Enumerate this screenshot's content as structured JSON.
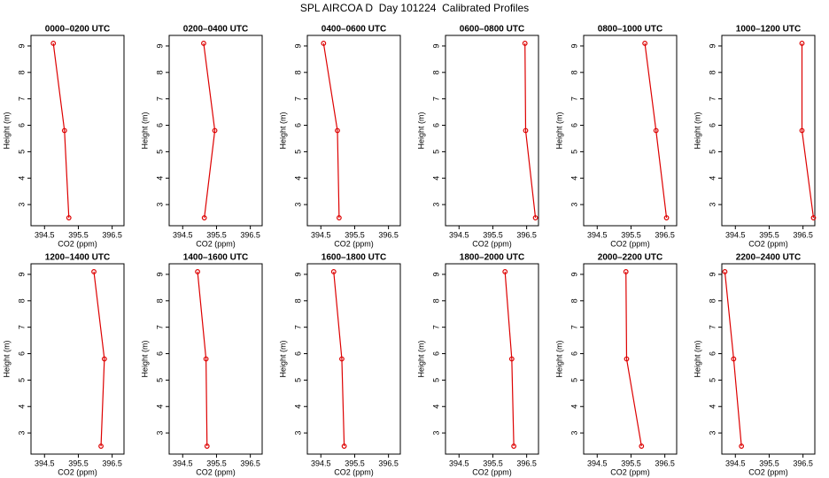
{
  "title": "SPL AIRCOA D  Day 101224  Calibrated Profiles",
  "chart_data": [
    {
      "type": "line",
      "title": "0000–0200 UTC",
      "xlabel": "CO2 (ppm)",
      "ylabel": "Height (m)",
      "color": "#dd0000",
      "x": [
        394.76,
        395.09,
        395.22
      ],
      "values": [
        9.1,
        5.8,
        2.5
      ],
      "xlim": [
        394.1,
        396.85
      ],
      "xticks": [
        394.5,
        395.5,
        396.5
      ],
      "ylim": [
        2.2,
        9.4
      ],
      "yticks": [
        3,
        4,
        5,
        6,
        7,
        8,
        9
      ]
    },
    {
      "type": "line",
      "title": "0200–0400 UTC",
      "xlabel": "CO2 (ppm)",
      "ylabel": "Height (m)",
      "color": "#dd0000",
      "x": [
        395.12,
        395.45,
        395.14
      ],
      "values": [
        9.1,
        5.8,
        2.5
      ],
      "xlim": [
        394.1,
        396.85
      ],
      "xticks": [
        394.5,
        395.5,
        396.5
      ],
      "ylim": [
        2.2,
        9.4
      ],
      "yticks": [
        3,
        4,
        5,
        6,
        7,
        8,
        9
      ]
    },
    {
      "type": "line",
      "title": "0400–0600 UTC",
      "xlabel": "CO2 (ppm)",
      "ylabel": "Height (m)",
      "color": "#dd0000",
      "x": [
        394.58,
        394.99,
        395.04
      ],
      "values": [
        9.1,
        5.8,
        2.5
      ],
      "xlim": [
        394.1,
        396.85
      ],
      "xticks": [
        394.5,
        395.5,
        396.5
      ],
      "ylim": [
        2.2,
        9.4
      ],
      "yticks": [
        3,
        4,
        5,
        6,
        7,
        8,
        9
      ]
    },
    {
      "type": "line",
      "title": "0600–0800 UTC",
      "xlabel": "CO2 (ppm)",
      "ylabel": "Height (m)",
      "color": "#dd0000",
      "x": [
        396.45,
        396.47,
        396.76
      ],
      "values": [
        9.1,
        5.8,
        2.5
      ],
      "xlim": [
        394.1,
        396.85
      ],
      "xticks": [
        394.5,
        395.5,
        396.5
      ],
      "ylim": [
        2.2,
        9.4
      ],
      "yticks": [
        3,
        4,
        5,
        6,
        7,
        8,
        9
      ]
    },
    {
      "type": "line",
      "title": "0800–1000 UTC",
      "xlabel": "CO2 (ppm)",
      "ylabel": "Height (m)",
      "color": "#dd0000",
      "x": [
        395.91,
        396.24,
        396.55
      ],
      "values": [
        9.1,
        5.8,
        2.5
      ],
      "xlim": [
        394.1,
        396.85
      ],
      "xticks": [
        394.5,
        395.5,
        396.5
      ],
      "ylim": [
        2.2,
        9.4
      ],
      "yticks": [
        3,
        4,
        5,
        6,
        7,
        8,
        9
      ]
    },
    {
      "type": "line",
      "title": "1000–1200 UTC",
      "xlabel": "CO2 (ppm)",
      "ylabel": "Height (m)",
      "color": "#dd0000",
      "x": [
        396.47,
        396.47,
        396.81
      ],
      "values": [
        9.1,
        5.8,
        2.5
      ],
      "xlim": [
        394.1,
        396.85
      ],
      "xticks": [
        394.5,
        395.5,
        396.5
      ],
      "ylim": [
        2.2,
        9.4
      ],
      "yticks": [
        3,
        4,
        5,
        6,
        7,
        8,
        9
      ]
    },
    {
      "type": "line",
      "title": "1200–1400 UTC",
      "xlabel": "CO2 (ppm)",
      "ylabel": "Height (m)",
      "color": "#dd0000",
      "x": [
        395.96,
        396.27,
        396.17
      ],
      "values": [
        9.1,
        5.8,
        2.5
      ],
      "xlim": [
        394.1,
        396.85
      ],
      "xticks": [
        394.5,
        395.5,
        396.5
      ],
      "ylim": [
        2.2,
        9.4
      ],
      "yticks": [
        3,
        4,
        5,
        6,
        7,
        8,
        9
      ]
    },
    {
      "type": "line",
      "title": "1400–1600 UTC",
      "xlabel": "CO2 (ppm)",
      "ylabel": "Height (m)",
      "color": "#dd0000",
      "x": [
        394.94,
        395.19,
        395.22
      ],
      "values": [
        9.1,
        5.8,
        2.5
      ],
      "xlim": [
        394.1,
        396.85
      ],
      "xticks": [
        394.5,
        395.5,
        396.5
      ],
      "ylim": [
        2.2,
        9.4
      ],
      "yticks": [
        3,
        4,
        5,
        6,
        7,
        8,
        9
      ]
    },
    {
      "type": "line",
      "title": "1600–1800 UTC",
      "xlabel": "CO2 (ppm)",
      "ylabel": "Height (m)",
      "color": "#dd0000",
      "x": [
        394.88,
        395.12,
        395.19
      ],
      "values": [
        9.1,
        5.8,
        2.5
      ],
      "xlim": [
        394.1,
        396.85
      ],
      "xticks": [
        394.5,
        395.5,
        396.5
      ],
      "ylim": [
        2.2,
        9.4
      ],
      "yticks": [
        3,
        4,
        5,
        6,
        7,
        8,
        9
      ]
    },
    {
      "type": "line",
      "title": "1800–2000 UTC",
      "xlabel": "CO2 (ppm)",
      "ylabel": "Height (m)",
      "color": "#dd0000",
      "x": [
        395.86,
        396.06,
        396.12
      ],
      "values": [
        9.1,
        5.8,
        2.5
      ],
      "xlim": [
        394.1,
        396.85
      ],
      "xticks": [
        394.5,
        395.5,
        396.5
      ],
      "ylim": [
        2.2,
        9.4
      ],
      "yticks": [
        3,
        4,
        5,
        6,
        7,
        8,
        9
      ]
    },
    {
      "type": "line",
      "title": "2000–2200 UTC",
      "xlabel": "CO2 (ppm)",
      "ylabel": "Height (m)",
      "color": "#dd0000",
      "x": [
        395.35,
        395.37,
        395.81
      ],
      "values": [
        9.1,
        5.8,
        2.5
      ],
      "xlim": [
        394.1,
        396.85
      ],
      "xticks": [
        394.5,
        395.5,
        396.5
      ],
      "ylim": [
        2.2,
        9.4
      ],
      "yticks": [
        3,
        4,
        5,
        6,
        7,
        8,
        9
      ]
    },
    {
      "type": "line",
      "title": "2200–2400 UTC",
      "xlabel": "CO2 (ppm)",
      "ylabel": "Height (m)",
      "color": "#dd0000",
      "x": [
        394.19,
        394.45,
        394.68
      ],
      "values": [
        9.1,
        5.8,
        2.5
      ],
      "xlim": [
        394.1,
        396.85
      ],
      "xticks": [
        394.5,
        395.5,
        396.5
      ],
      "ylim": [
        2.2,
        9.4
      ],
      "yticks": [
        3,
        4,
        5,
        6,
        7,
        8,
        9
      ]
    }
  ]
}
